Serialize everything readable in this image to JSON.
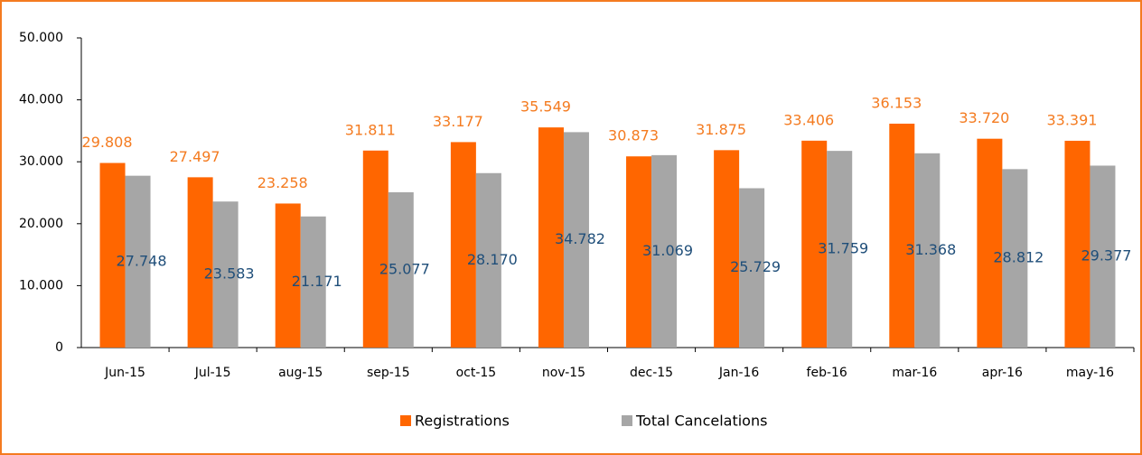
{
  "chart_data": {
    "type": "bar",
    "categories": [
      "Jun-15",
      "Jul-15",
      "aug-15",
      "sep-15",
      "oct-15",
      "nov-15",
      "dec-15",
      "Jan-16",
      "feb-16",
      "mar-16",
      "apr-16",
      "may-16"
    ],
    "series": [
      {
        "name": "Registrations",
        "color": "#ff6600",
        "label_color": "#f47b20",
        "values": [
          29808,
          27497,
          23258,
          31811,
          33177,
          35549,
          30873,
          31875,
          33406,
          36153,
          33720,
          33391
        ],
        "value_labels": [
          "29.808",
          "27.497",
          "23.258",
          "31.811",
          "33.177",
          "35.549",
          "30.873",
          "31.875",
          "33.406",
          "36.153",
          "33.720",
          "33.391"
        ]
      },
      {
        "name": "Total Cancelations",
        "color": "#a6a6a6",
        "label_color": "#1f4e79",
        "values": [
          27748,
          23583,
          21171,
          25077,
          28170,
          34782,
          31069,
          25729,
          31759,
          31368,
          28812,
          29377
        ],
        "value_labels": [
          "27.748",
          "23.583",
          "21.171",
          "25.077",
          "28.170",
          "34.782",
          "31.069",
          "25.729",
          "31.759",
          "31.368",
          "28.812",
          "29.377"
        ]
      }
    ],
    "ylim": [
      0,
      50000
    ],
    "yticks": [
      0,
      {
        "value": 10000,
        "label": "10.000"
      },
      {
        "value": 20000,
        "label": "20.000"
      },
      {
        "value": 30000,
        "label": "30.000"
      },
      {
        "value": 40000,
        "label": "40.000"
      },
      {
        "value": 50000,
        "label": "50.000"
      }
    ],
    "legend": "bottom"
  }
}
